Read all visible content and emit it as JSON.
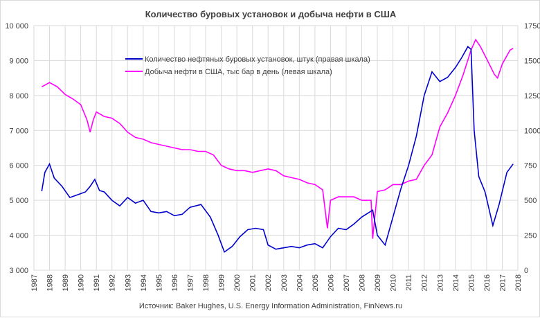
{
  "chart_data": {
    "type": "line",
    "title": "Количество буровых установок  и добыча нефти в США",
    "source": "Источник: Baker Hughes, U.S. Energy Information Administration, FinNews.ru",
    "x_ticks": [
      "1987",
      "1988",
      "1989",
      "1990",
      "1991",
      "1992",
      "1993",
      "1994",
      "1995",
      "1996",
      "1997",
      "1998",
      "1999",
      "2000",
      "2001",
      "2002",
      "2003",
      "2004",
      "2005",
      "2006",
      "2007",
      "2008",
      "2009",
      "2010",
      "2011",
      "2012",
      "2013",
      "2014",
      "2015",
      "2016",
      "2017",
      "2018"
    ],
    "xlim": [
      1987,
      2018
    ],
    "y_left": {
      "lim": [
        3000,
        10000
      ],
      "ticks": [
        "3 000",
        "4 000",
        "5 000",
        "6 000",
        "7 000",
        "8 000",
        "9 000",
        "10 000"
      ]
    },
    "y_right": {
      "lim": [
        0,
        1750
      ],
      "ticks": [
        "0",
        "250",
        "500",
        "750",
        "1000",
        "1250",
        "1500",
        "1750"
      ]
    },
    "grid": true,
    "legend_position": "center-top",
    "series": [
      {
        "name": "Количество нефтяных буровых установок, штук (правая шкала)",
        "axis": "right",
        "color": "#0000cc",
        "x": [
          1987.5,
          1987.7,
          1988.0,
          1988.3,
          1988.8,
          1989.3,
          1989.8,
          1990.3,
          1990.6,
          1990.9,
          1991.2,
          1991.5,
          1992.0,
          1992.5,
          1993.0,
          1993.5,
          1994.0,
          1994.5,
          1995.0,
          1995.5,
          1996.0,
          1996.5,
          1997.0,
          1997.7,
          1998.3,
          1998.8,
          1999.2,
          1999.7,
          2000.2,
          2000.7,
          2001.2,
          2001.7,
          2002.0,
          2002.5,
          2003.0,
          2003.5,
          2004.0,
          2004.5,
          2005.0,
          2005.5,
          2006.0,
          2006.5,
          2007.0,
          2007.5,
          2008.0,
          2008.7,
          2009.0,
          2009.5,
          2010.0,
          2010.5,
          2011.0,
          2011.5,
          2012.0,
          2012.5,
          2013.0,
          2013.5,
          2014.0,
          2014.4,
          2014.8,
          2015.0,
          2015.2,
          2015.5,
          2015.9,
          2016.4,
          2016.8,
          2017.3,
          2017.7
        ],
        "values": [
          565,
          700,
          760,
          660,
          600,
          520,
          540,
          560,
          600,
          650,
          570,
          560,
          500,
          460,
          520,
          480,
          500,
          420,
          410,
          420,
          390,
          400,
          450,
          470,
          380,
          250,
          130,
          170,
          240,
          290,
          300,
          290,
          180,
          150,
          160,
          170,
          160,
          180,
          190,
          160,
          240,
          300,
          290,
          330,
          380,
          430,
          250,
          180,
          380,
          580,
          750,
          960,
          1250,
          1420,
          1350,
          1380,
          1450,
          1520,
          1600,
          1580,
          1000,
          670,
          560,
          320,
          470,
          700,
          760
        ]
      },
      {
        "name": "Добыча нефти в США, тыс бар в день (левая шкала)",
        "axis": "left",
        "color": "#ff00ff",
        "x": [
          1987.5,
          1988.0,
          1988.5,
          1989.0,
          1989.5,
          1990.0,
          1990.4,
          1990.6,
          1990.8,
          1991.0,
          1991.5,
          1992.0,
          1992.5,
          1993.0,
          1993.5,
          1994.0,
          1994.5,
          1995.0,
          1995.5,
          1996.0,
          1996.5,
          1997.0,
          1997.5,
          1998.0,
          1998.5,
          1999.0,
          1999.5,
          2000.0,
          2000.5,
          2001.0,
          2001.5,
          2002.0,
          2002.5,
          2003.0,
          2003.5,
          2004.0,
          2004.5,
          2005.0,
          2005.5,
          2005.8,
          2006.0,
          2006.5,
          2007.0,
          2007.5,
          2008.0,
          2008.6,
          2008.7,
          2009.0,
          2009.5,
          2010.0,
          2010.5,
          2011.0,
          2011.5,
          2012.0,
          2012.5,
          2013.0,
          2013.5,
          2014.0,
          2014.5,
          2015.0,
          2015.3,
          2015.6,
          2016.0,
          2016.5,
          2016.7,
          2017.0,
          2017.5,
          2017.7
        ],
        "values": [
          8250,
          8370,
          8250,
          8030,
          7900,
          7740,
          7300,
          6950,
          7300,
          7530,
          7400,
          7350,
          7200,
          6950,
          6800,
          6750,
          6650,
          6600,
          6550,
          6500,
          6450,
          6450,
          6400,
          6400,
          6300,
          6000,
          5900,
          5850,
          5850,
          5800,
          5850,
          5900,
          5850,
          5700,
          5650,
          5600,
          5500,
          5450,
          5300,
          4200,
          5000,
          5100,
          5100,
          5100,
          5000,
          5000,
          3900,
          5250,
          5300,
          5450,
          5450,
          5550,
          5600,
          6000,
          6300,
          7100,
          7500,
          8000,
          8600,
          9300,
          9600,
          9400,
          9050,
          8600,
          8500,
          8900,
          9300,
          9350
        ]
      }
    ]
  }
}
